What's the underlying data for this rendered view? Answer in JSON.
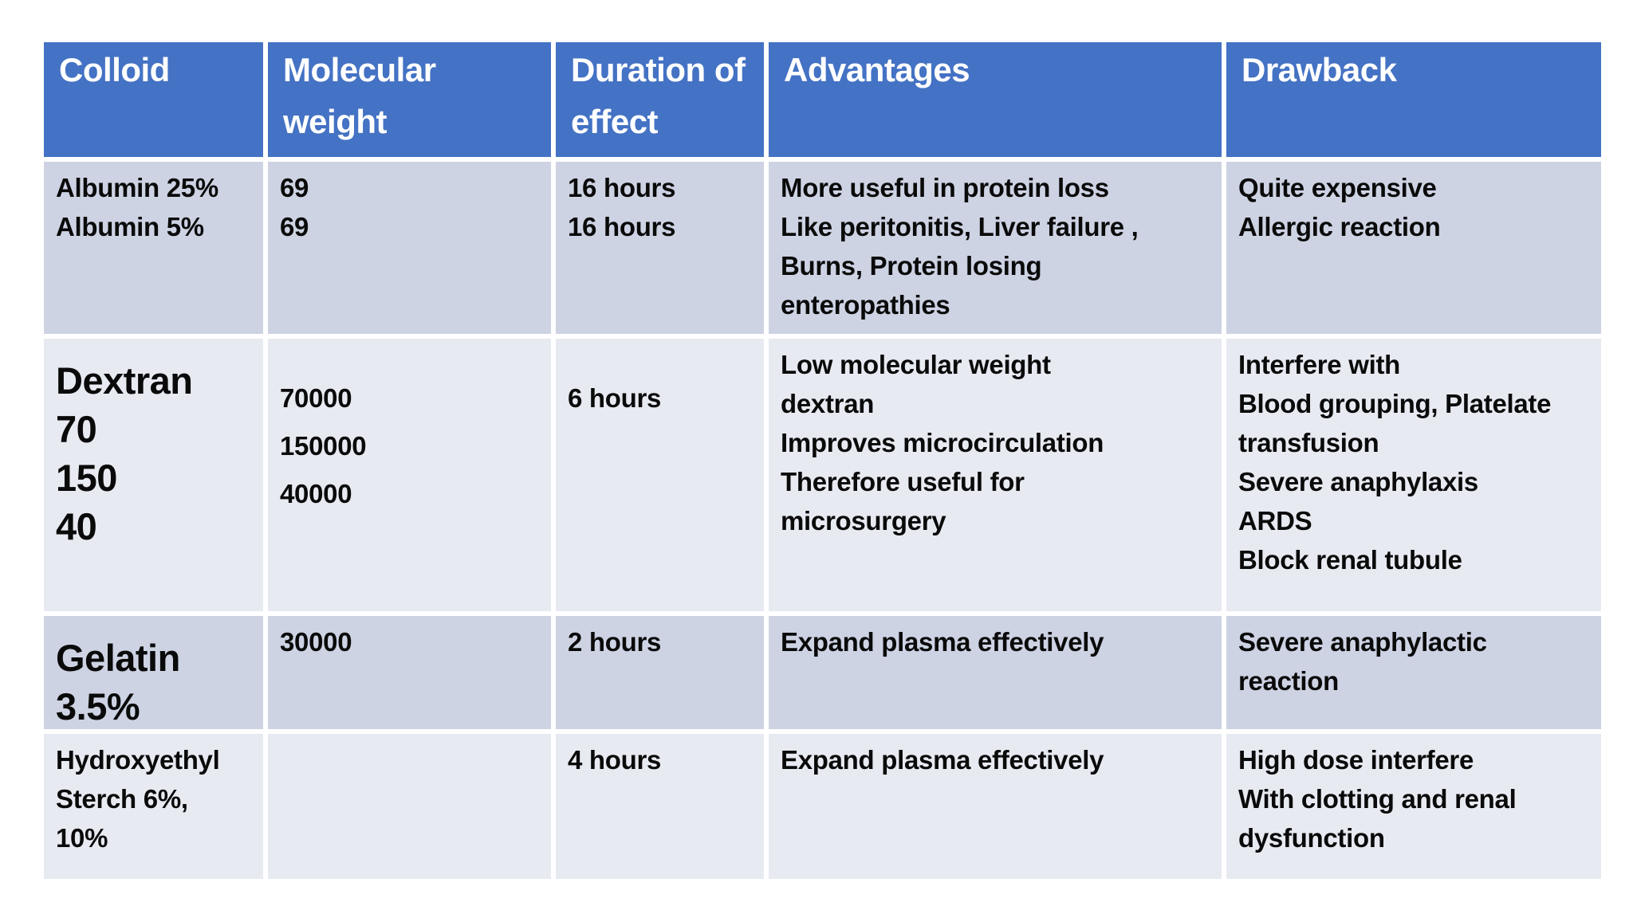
{
  "table": {
    "headers": [
      "Colloid",
      "Molecular\nweight",
      "Duration of\neffect",
      "Advantages",
      "Drawback"
    ],
    "rows": [
      {
        "colloid": "Albumin 25%\nAlbumin 5%",
        "molecular_weight": "69\n69",
        "duration": "16 hours\n16 hours",
        "advantages": "More useful in protein loss\nLike peritonitis, Liver failure ,\nBurns, Protein losing\nenteropathies",
        "drawback": "Quite expensive\nAllergic reaction"
      },
      {
        "colloid": "Dextran\n70\n150\n40",
        "molecular_weight": "70000\n150000\n40000",
        "duration": "6 hours",
        "advantages": "Low molecular weight\ndextran\nImproves microcirculation\nTherefore useful for\nmicrosurgery",
        "drawback": "Interfere with\nBlood grouping, Platelate\ntransfusion\nSevere anaphylaxis\nARDS\nBlock renal tubule"
      },
      {
        "colloid": "Gelatin\n3.5%",
        "molecular_weight": "30000",
        "duration": "2 hours",
        "advantages": "Expand plasma effectively",
        "drawback": "Severe anaphylactic\nreaction"
      },
      {
        "colloid": "Hydroxyethyl\nSterch 6%,\n10%",
        "molecular_weight": "",
        "duration": "4 hours",
        "advantages": "Expand plasma effectively",
        "drawback": "High dose interfere\nWith clotting and renal\ndysfunction"
      }
    ],
    "colors": {
      "header_bg": "#4472C4",
      "header_text": "#FFFFFF",
      "band_dark": "#CDD3E3",
      "band_light": "#E8EAF2",
      "body_text": "#0A0A0A",
      "grid_gap": "#FFFFFF",
      "page_bg": "#FFFFFF"
    }
  }
}
